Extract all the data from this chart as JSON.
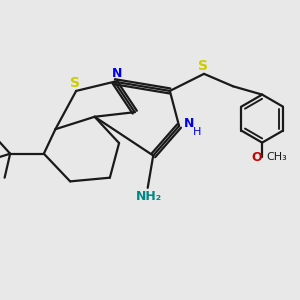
{
  "bg_color": "#e8e8e8",
  "bond_color": "#1a1a1a",
  "S_color": "#cccc00",
  "N_color": "#0000ee",
  "NH2_color": "#008888",
  "O_color": "#cc0000",
  "line_width": 1.6,
  "dbo": 0.055,
  "xlim": [
    -3.0,
    3.5
  ],
  "ylim": [
    -2.4,
    2.2
  ]
}
